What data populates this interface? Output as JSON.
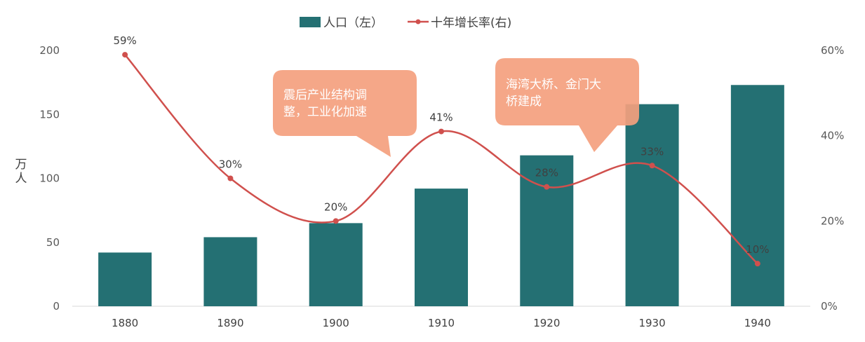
{
  "chart_data": {
    "type": "bar",
    "categories": [
      "1880",
      "1890",
      "1900",
      "1910",
      "1920",
      "1930",
      "1940"
    ],
    "series": [
      {
        "name": "人口（左）",
        "type": "bar",
        "axis": "left",
        "color": "#247073",
        "values": [
          42,
          54,
          65,
          92,
          118,
          158,
          173
        ]
      },
      {
        "name": "十年增长率(右)",
        "type": "line",
        "axis": "right",
        "color": "#D0504D",
        "values": [
          59,
          30,
          20,
          41,
          28,
          33,
          10
        ],
        "labels": [
          "59%",
          "30%",
          "20%",
          "41%",
          "28%",
          "33%",
          "10%"
        ]
      }
    ],
    "ylabel": "万人",
    "ylim": [
      0,
      200
    ],
    "y_ticks": [
      "0",
      "50",
      "100",
      "150",
      "200"
    ],
    "y2lim": [
      0,
      60
    ],
    "y2_ticks": [
      "0%",
      "20%",
      "40%",
      "60%"
    ],
    "legend_position": "top-center",
    "grid": false,
    "annotations": [
      {
        "text_lines": [
          "震后产业结构调",
          "整，工业化加速"
        ],
        "color": "#F4A07E"
      },
      {
        "text_lines": [
          "海湾大桥、金门大",
          "桥建成"
        ],
        "color": "#F4A07E"
      }
    ]
  }
}
